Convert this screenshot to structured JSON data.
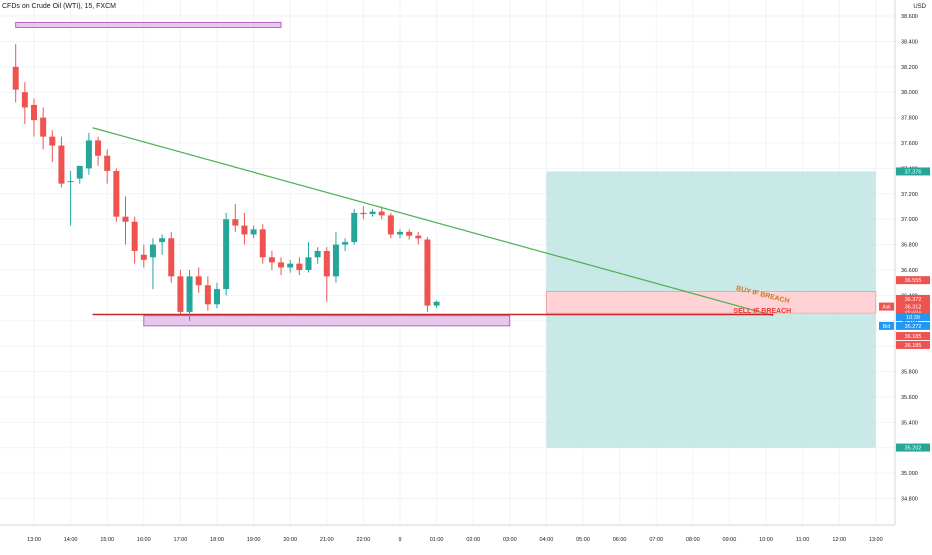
{
  "header": {
    "symbol_title": "CFDs on Crude Oil (WTI), 15, FXCM",
    "currency": "USD"
  },
  "colors": {
    "up": "#26a69a",
    "down": "#ef5350",
    "trendline": "#4caf50",
    "support": "#c62828",
    "zone_fill": "#e1bee7",
    "zone_border": "#ab47bc",
    "target_fill": "#b2dfdb",
    "stop_fill": "#ffcdd2",
    "grid": "#f0f3fa"
  },
  "chart_data": {
    "type": "candlestick",
    "instrument": "CFDs on Crude Oil (WTI)",
    "timeframe": "15",
    "broker": "FXCM",
    "ylim": [
      24.7,
      38.7
    ],
    "y_ticks": [
      38.6,
      38.4,
      38.2,
      38.0,
      37.8,
      37.6,
      37.4,
      37.2,
      37.0,
      36.8,
      36.6,
      36.4,
      36.2,
      36.0,
      35.8,
      35.6,
      35.4,
      35.2,
      35.0,
      34.8
    ],
    "x_ticks": [
      {
        "t": 13,
        "label": "13:00"
      },
      {
        "t": 14,
        "label": "14:00"
      },
      {
        "t": 15,
        "label": "15:00"
      },
      {
        "t": 16,
        "label": "16:00"
      },
      {
        "t": 17,
        "label": "17:00"
      },
      {
        "t": 18,
        "label": "18:00"
      },
      {
        "t": 19,
        "label": "19:00"
      },
      {
        "t": 20,
        "label": "20:00"
      },
      {
        "t": 21,
        "label": "21:00"
      },
      {
        "t": 22,
        "label": "22:00"
      },
      {
        "t": 23,
        "label": "9"
      },
      {
        "t": 24,
        "label": "01:00"
      },
      {
        "t": 25,
        "label": "02:00"
      },
      {
        "t": 26,
        "label": "03:00"
      },
      {
        "t": 27,
        "label": "04:00"
      },
      {
        "t": 28,
        "label": "05:00"
      },
      {
        "t": 29,
        "label": "06:00"
      },
      {
        "t": 30,
        "label": "07:00"
      },
      {
        "t": 31,
        "label": "08:00"
      },
      {
        "t": 32,
        "label": "09:00"
      },
      {
        "t": 33,
        "label": "10:00"
      },
      {
        "t": 34,
        "label": "11:00"
      },
      {
        "t": 35,
        "label": "12:00"
      },
      {
        "t": 36,
        "label": "13:00"
      }
    ],
    "candles": [
      {
        "t": 12.5,
        "o": 38.2,
        "h": 38.38,
        "c": 38.02,
        "l": 37.92
      },
      {
        "t": 12.75,
        "o": 38.0,
        "h": 38.08,
        "c": 37.88,
        "l": 37.75
      },
      {
        "t": 13.0,
        "o": 37.9,
        "h": 37.95,
        "c": 37.78,
        "l": 37.65
      },
      {
        "t": 13.25,
        "o": 37.8,
        "h": 37.88,
        "c": 37.65,
        "l": 37.55
      },
      {
        "t": 13.5,
        "o": 37.65,
        "h": 37.7,
        "c": 37.58,
        "l": 37.45
      },
      {
        "t": 13.75,
        "o": 37.58,
        "h": 37.65,
        "c": 37.28,
        "l": 37.25
      },
      {
        "t": 14.0,
        "o": 37.3,
        "h": 37.38,
        "c": 37.3,
        "l": 36.95
      },
      {
        "t": 14.25,
        "o": 37.32,
        "h": 37.42,
        "c": 37.42,
        "l": 37.28
      },
      {
        "t": 14.5,
        "o": 37.4,
        "h": 37.68,
        "c": 37.62,
        "l": 37.35
      },
      {
        "t": 14.75,
        "o": 37.62,
        "h": 37.65,
        "c": 37.5,
        "l": 37.42
      },
      {
        "t": 15.0,
        "o": 37.5,
        "h": 37.55,
        "c": 37.38,
        "l": 37.28
      },
      {
        "t": 15.25,
        "o": 37.38,
        "h": 37.4,
        "c": 37.02,
        "l": 36.98
      },
      {
        "t": 15.5,
        "o": 37.02,
        "h": 37.18,
        "c": 36.98,
        "l": 36.8
      },
      {
        "t": 15.75,
        "o": 36.98,
        "h": 37.02,
        "c": 36.75,
        "l": 36.65
      },
      {
        "t": 16.0,
        "o": 36.72,
        "h": 36.8,
        "c": 36.68,
        "l": 36.62
      },
      {
        "t": 16.25,
        "o": 36.7,
        "h": 36.85,
        "c": 36.8,
        "l": 36.45
      },
      {
        "t": 16.5,
        "o": 36.82,
        "h": 36.88,
        "c": 36.85,
        "l": 36.72
      },
      {
        "t": 16.75,
        "o": 36.85,
        "h": 36.9,
        "c": 36.55,
        "l": 36.5
      },
      {
        "t": 17.0,
        "o": 36.55,
        "h": 36.6,
        "c": 36.27,
        "l": 36.25
      },
      {
        "t": 17.25,
        "o": 36.27,
        "h": 36.6,
        "c": 36.55,
        "l": 36.2
      },
      {
        "t": 17.5,
        "o": 36.55,
        "h": 36.62,
        "c": 36.48,
        "l": 36.42
      },
      {
        "t": 17.75,
        "o": 36.48,
        "h": 36.55,
        "c": 36.33,
        "l": 36.28
      },
      {
        "t": 18.0,
        "o": 36.33,
        "h": 36.5,
        "c": 36.45,
        "l": 36.3
      },
      {
        "t": 18.25,
        "o": 36.45,
        "h": 37.05,
        "c": 37.0,
        "l": 36.4
      },
      {
        "t": 18.5,
        "o": 37.0,
        "h": 37.12,
        "c": 36.95,
        "l": 36.9
      },
      {
        "t": 18.75,
        "o": 36.95,
        "h": 37.05,
        "c": 36.88,
        "l": 36.8
      },
      {
        "t": 19.0,
        "o": 36.88,
        "h": 36.95,
        "c": 36.92,
        "l": 36.85
      },
      {
        "t": 19.25,
        "o": 36.92,
        "h": 36.96,
        "c": 36.7,
        "l": 36.65
      },
      {
        "t": 19.5,
        "o": 36.7,
        "h": 36.75,
        "c": 36.66,
        "l": 36.6
      },
      {
        "t": 19.75,
        "o": 36.66,
        "h": 36.7,
        "c": 36.62,
        "l": 36.56
      },
      {
        "t": 20.0,
        "o": 36.62,
        "h": 36.68,
        "c": 36.65,
        "l": 36.58
      },
      {
        "t": 20.25,
        "o": 36.65,
        "h": 36.7,
        "c": 36.6,
        "l": 36.56
      },
      {
        "t": 20.5,
        "o": 36.6,
        "h": 36.82,
        "c": 36.7,
        "l": 36.58
      },
      {
        "t": 20.75,
        "o": 36.7,
        "h": 36.78,
        "c": 36.75,
        "l": 36.65
      },
      {
        "t": 21.0,
        "o": 36.75,
        "h": 36.78,
        "c": 36.55,
        "l": 36.35
      },
      {
        "t": 21.25,
        "o": 36.55,
        "h": 36.9,
        "c": 36.8,
        "l": 36.5
      },
      {
        "t": 21.5,
        "o": 36.8,
        "h": 36.85,
        "c": 36.82,
        "l": 36.75
      },
      {
        "t": 21.75,
        "o": 36.82,
        "h": 37.08,
        "c": 37.05,
        "l": 36.8
      },
      {
        "t": 22.0,
        "o": 37.05,
        "h": 37.1,
        "c": 37.04,
        "l": 37.0
      },
      {
        "t": 22.25,
        "o": 37.04,
        "h": 37.08,
        "c": 37.06,
        "l": 37.02
      },
      {
        "t": 22.5,
        "o": 37.06,
        "h": 37.1,
        "c": 37.03,
        "l": 37.0
      },
      {
        "t": 22.75,
        "o": 37.03,
        "h": 37.05,
        "c": 36.88,
        "l": 36.85
      },
      {
        "t": 23.0,
        "o": 36.88,
        "h": 36.92,
        "c": 36.9,
        "l": 36.85
      },
      {
        "t": 23.25,
        "o": 36.9,
        "h": 36.92,
        "c": 36.87,
        "l": 36.84
      },
      {
        "t": 23.5,
        "o": 36.87,
        "h": 36.9,
        "c": 36.85,
        "l": 36.8
      },
      {
        "t": 23.75,
        "o": 36.84,
        "h": 36.86,
        "c": 36.32,
        "l": 36.27
      },
      {
        "t": 24.0,
        "o": 36.32,
        "h": 36.36,
        "c": 36.35,
        "l": 36.3
      }
    ],
    "annotations": {
      "trendline": {
        "t1": 14.6,
        "p1": 37.72,
        "t2": 33.2,
        "p2": 36.24
      },
      "support_line": {
        "t1": 14.6,
        "t2": 33.2,
        "price": 36.25
      },
      "zones": [
        {
          "t1": 12.5,
          "t2": 19.75,
          "p1": 38.55,
          "p2": 38.51
        },
        {
          "t1": 16.0,
          "t2": 26.0,
          "p1": 36.24,
          "p2": 36.16
        }
      ],
      "position": {
        "t1": 27.0,
        "t2": 36.0,
        "target": 37.376,
        "entry": 36.26,
        "stop": 36.43,
        "bottom": 35.2
      },
      "texts": [
        {
          "text": "BUY IF BREACH",
          "t": 32.9,
          "p": 36.39,
          "angle": 14,
          "color": "#c7792c"
        },
        {
          "text": "SELL IF BREACH",
          "t": 32.9,
          "p": 36.26,
          "angle": 0,
          "color": "#e53935"
        }
      ]
    },
    "price_tags": [
      {
        "label": "37.376",
        "price": 37.376,
        "bg": "#26a69a"
      },
      {
        "label": "36.555",
        "price": 36.52,
        "bg": "#ef5350"
      },
      {
        "label": "36.372",
        "price": 36.372,
        "bg": "#ef5350"
      },
      {
        "label": "36.281",
        "price": 36.281,
        "bg": "#ef5350"
      },
      {
        "label": "36.312",
        "price": 36.312,
        "bg": "#ef5350",
        "prefix": "Ask"
      },
      {
        "label": "10:39",
        "price": 36.23,
        "bg": "#2196f3"
      },
      {
        "label": "36.272",
        "price": 36.16,
        "bg": "#2196f3",
        "prefix": "Bid"
      },
      {
        "label": "36.185",
        "price": 36.08,
        "bg": "#ef5350"
      },
      {
        "label": "36.185",
        "price": 36.01,
        "bg": "#ef5350"
      },
      {
        "label": "35.202",
        "price": 35.202,
        "bg": "#26a69a"
      }
    ]
  }
}
